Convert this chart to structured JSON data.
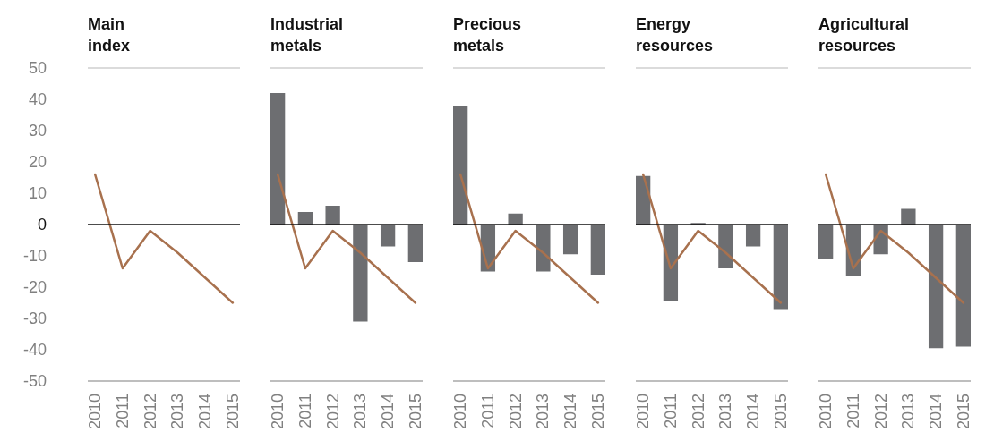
{
  "chart_data": [
    {
      "type": "line",
      "title": "Main index",
      "categories": [
        "2010",
        "2011",
        "2012",
        "2013",
        "2014",
        "2015"
      ],
      "series": [
        {
          "color": "#a8714e",
          "values": [
            16,
            -14,
            -2,
            -9,
            -17,
            -25
          ]
        }
      ],
      "ylim": [
        -50,
        50
      ],
      "yticks": [
        -50,
        -40,
        -30,
        -20,
        -10,
        0,
        10,
        20,
        30,
        40,
        50
      ]
    },
    {
      "type": "bar",
      "title": "Industrial metals",
      "categories": [
        "2010",
        "2011",
        "2012",
        "2013",
        "2014",
        "2015"
      ],
      "series": [
        {
          "color": "#6d6e71",
          "values": [
            42,
            4,
            6,
            -31,
            -7,
            -12
          ]
        },
        {
          "type": "line",
          "color": "#a8714e",
          "values": [
            16,
            -14,
            -2,
            -9,
            -17,
            -25
          ]
        }
      ],
      "ylim": [
        -50,
        50
      ],
      "tick_labels": "x"
    },
    {
      "type": "bar",
      "title": "Precious metals",
      "categories": [
        "2010",
        "2011",
        "2012",
        "2013",
        "2014",
        "2015"
      ],
      "series": [
        {
          "color": "#6d6e71",
          "values": [
            38,
            -15,
            3.5,
            -15,
            -9.5,
            -16
          ]
        },
        {
          "type": "line",
          "color": "#a8714e",
          "values": [
            16,
            -14,
            -2,
            -9,
            -17,
            -25
          ]
        }
      ],
      "ylim": [
        -50,
        50
      ],
      "tick_labels": "x"
    },
    {
      "type": "bar",
      "title": "Energy resources",
      "categories": [
        "2010",
        "2011",
        "2012",
        "2013",
        "2014",
        "2015"
      ],
      "series": [
        {
          "color": "#6d6e71",
          "values": [
            15.5,
            -24.5,
            0.5,
            -14,
            -7,
            -27
          ]
        },
        {
          "type": "line",
          "color": "#a8714e",
          "values": [
            16,
            -14,
            -2,
            -9,
            -17,
            -25
          ]
        }
      ],
      "ylim": [
        -50,
        50
      ],
      "tick_labels": "x"
    },
    {
      "type": "bar",
      "title": "Agricultural resources",
      "categories": [
        "2010",
        "2011",
        "2012",
        "2013",
        "2014",
        "2015"
      ],
      "series": [
        {
          "color": "#6d6e71",
          "values": [
            -11,
            -16.5,
            -9.5,
            5,
            -39.5,
            -39
          ]
        },
        {
          "type": "line",
          "color": "#a8714e",
          "values": [
            16,
            -14,
            -2,
            -9,
            -17,
            -25
          ]
        }
      ],
      "ylim": [
        -50,
        50
      ],
      "tick_labels": "x"
    }
  ]
}
